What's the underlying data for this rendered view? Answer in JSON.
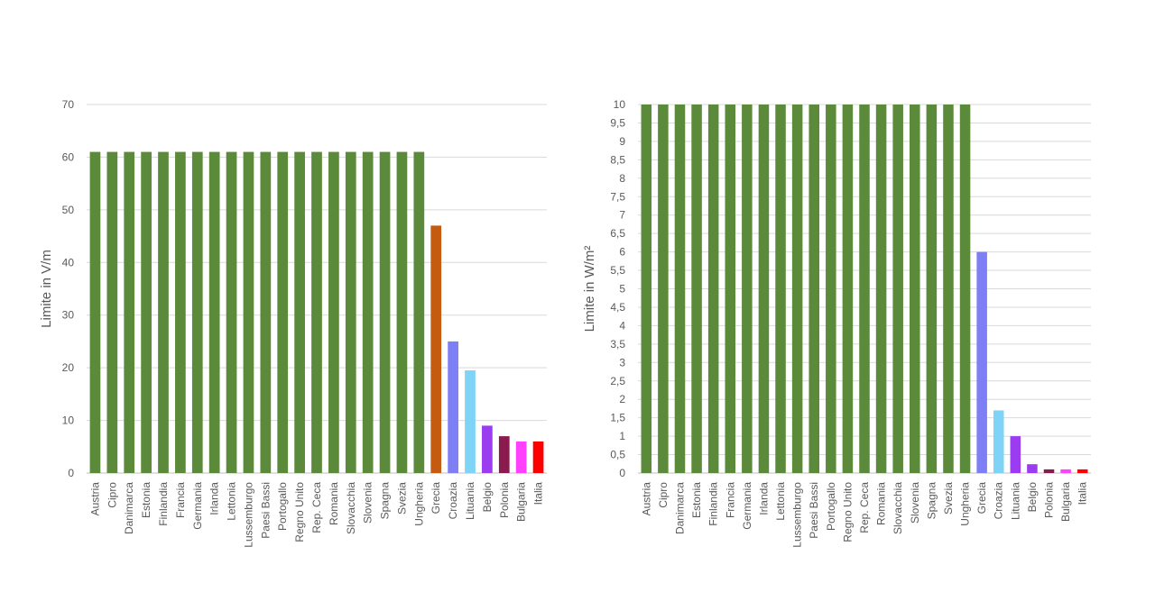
{
  "chart_data": [
    {
      "type": "bar",
      "ylabel": "Limite in V/m",
      "ylim": [
        0,
        70
      ],
      "yticks": [
        "0",
        "10",
        "20",
        "30",
        "40",
        "50",
        "60",
        "70"
      ],
      "grid": true,
      "categories": [
        "Austria",
        "Cipro",
        "Danimarca",
        "Estonia",
        "Finlandia",
        "Francia",
        "Germania",
        "Irlanda",
        "Lettonia",
        "Lussemburgo",
        "Paesi Bassi",
        "Portogallo",
        "Regno Unito",
        "Rep. Ceca",
        "Romania",
        "Slovacchia",
        "Slovenia",
        "Spagna",
        "Svezia",
        "Ungheria",
        "Grecia",
        "Croazia",
        "Lituania",
        "Belgio",
        "Polonia",
        "Bulgaria",
        "Italia"
      ],
      "values": [
        61,
        61,
        61,
        61,
        61,
        61,
        61,
        61,
        61,
        61,
        61,
        61,
        61,
        61,
        61,
        61,
        61,
        61,
        61,
        61,
        47,
        25,
        19.5,
        9,
        7,
        6,
        6
      ],
      "colors": [
        "#5b8a3a",
        "#5b8a3a",
        "#5b8a3a",
        "#5b8a3a",
        "#5b8a3a",
        "#5b8a3a",
        "#5b8a3a",
        "#5b8a3a",
        "#5b8a3a",
        "#5b8a3a",
        "#5b8a3a",
        "#5b8a3a",
        "#5b8a3a",
        "#5b8a3a",
        "#5b8a3a",
        "#5b8a3a",
        "#5b8a3a",
        "#5b8a3a",
        "#5b8a3a",
        "#5b8a3a",
        "#c55a11",
        "#7f7ff5",
        "#7ed3f7",
        "#9b3cf0",
        "#8b1a4e",
        "#ff40ff",
        "#ff0000"
      ]
    },
    {
      "type": "bar",
      "ylabel": "Limite in W/m²",
      "ylim": [
        0,
        10
      ],
      "yticks": [
        "0",
        "0,5",
        "1",
        "1,5",
        "2",
        "2,5",
        "3",
        "3,5",
        "4",
        "4,5",
        "5",
        "5,5",
        "6",
        "6,5",
        "7",
        "7,5",
        "8",
        "8,5",
        "9",
        "9,5",
        "10"
      ],
      "grid": true,
      "categories": [
        "Austria",
        "Cipro",
        "Danimarca",
        "Estonia",
        "Finlandia",
        "Francia",
        "Germania",
        "Irlanda",
        "Lettonia",
        "Lussemburgo",
        "Paesi Bassi",
        "Portogallo",
        "Regno Unito",
        "Rep. Ceca",
        "Romania",
        "Slovacchia",
        "Slovenia",
        "Spagna",
        "Svezia",
        "Ungheria",
        "Grecia",
        "Croazia",
        "Lituania",
        "Belgio",
        "Polonia",
        "Bulgaria",
        "Italia"
      ],
      "values": [
        10,
        10,
        10,
        10,
        10,
        10,
        10,
        10,
        10,
        10,
        10,
        10,
        10,
        10,
        10,
        10,
        10,
        10,
        10,
        10,
        6,
        1.7,
        1,
        0.24,
        0.1,
        0.1,
        0.1
      ],
      "colors": [
        "#5b8a3a",
        "#5b8a3a",
        "#5b8a3a",
        "#5b8a3a",
        "#5b8a3a",
        "#5b8a3a",
        "#5b8a3a",
        "#5b8a3a",
        "#5b8a3a",
        "#5b8a3a",
        "#5b8a3a",
        "#5b8a3a",
        "#5b8a3a",
        "#5b8a3a",
        "#5b8a3a",
        "#5b8a3a",
        "#5b8a3a",
        "#5b8a3a",
        "#5b8a3a",
        "#5b8a3a",
        "#7f7ff5",
        "#7ed3f7",
        "#9b3cf0",
        "#9b3cf0",
        "#8b1a4e",
        "#ff40ff",
        "#ff0000"
      ]
    }
  ]
}
